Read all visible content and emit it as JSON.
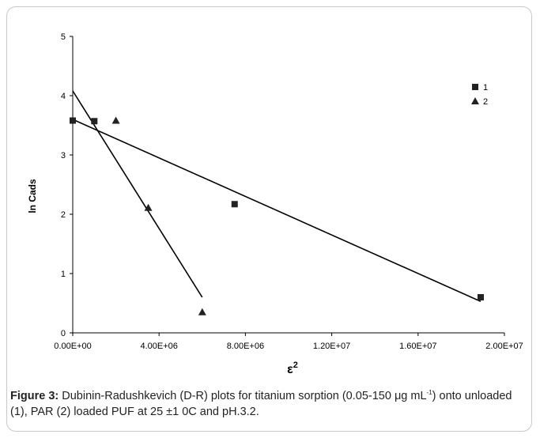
{
  "chart_data": {
    "type": "scatter",
    "ylabel": "ln Cads",
    "xlabel_base": "ε",
    "xlabel_sup": "2",
    "xlim": [
      0,
      20000000
    ],
    "ylim": [
      0,
      5
    ],
    "x_ticks": [
      {
        "value": 0,
        "label": "0.00E+00"
      },
      {
        "value": 4000000,
        "label": "4.00E+06"
      },
      {
        "value": 8000000,
        "label": "8.00E+06"
      },
      {
        "value": 12000000,
        "label": "1.20E+07"
      },
      {
        "value": 16000000,
        "label": "1.60E+07"
      },
      {
        "value": 20000000,
        "label": "2.00E+07"
      }
    ],
    "y_ticks": [
      {
        "value": 0,
        "label": "0"
      },
      {
        "value": 1,
        "label": "1"
      },
      {
        "value": 2,
        "label": "2"
      },
      {
        "value": 3,
        "label": "3"
      },
      {
        "value": 4,
        "label": "4"
      },
      {
        "value": 5,
        "label": "5"
      }
    ],
    "grid": false,
    "legend_position": "top-right",
    "series": [
      {
        "name": "1",
        "marker": "square",
        "points": [
          {
            "x": 0,
            "y": 3.58
          },
          {
            "x": 1000000,
            "y": 3.57
          },
          {
            "x": 7500000,
            "y": 2.17
          },
          {
            "x": 18900000,
            "y": 0.6
          }
        ],
        "trendline": {
          "x": [
            0,
            18900000
          ],
          "y": [
            3.6,
            0.53
          ]
        }
      },
      {
        "name": "2",
        "marker": "triangle",
        "points": [
          {
            "x": 2000000,
            "y": 3.58
          },
          {
            "x": 3500000,
            "y": 2.11
          },
          {
            "x": 6000000,
            "y": 0.35
          }
        ],
        "trendline": {
          "x": [
            0,
            6000000
          ],
          "y": [
            4.08,
            0.6
          ]
        }
      }
    ]
  },
  "caption": {
    "label": "Figure 3:",
    "text_before_sup": " Dubinin-Radushkevich (D-R) plots for titanium sorption (0.05-150 μg mL",
    "sup": "-1",
    "text_after_sup": ") onto unloaded (1), PAR (2) loaded PUF at 25 ±1 0C and pH.3.2."
  }
}
